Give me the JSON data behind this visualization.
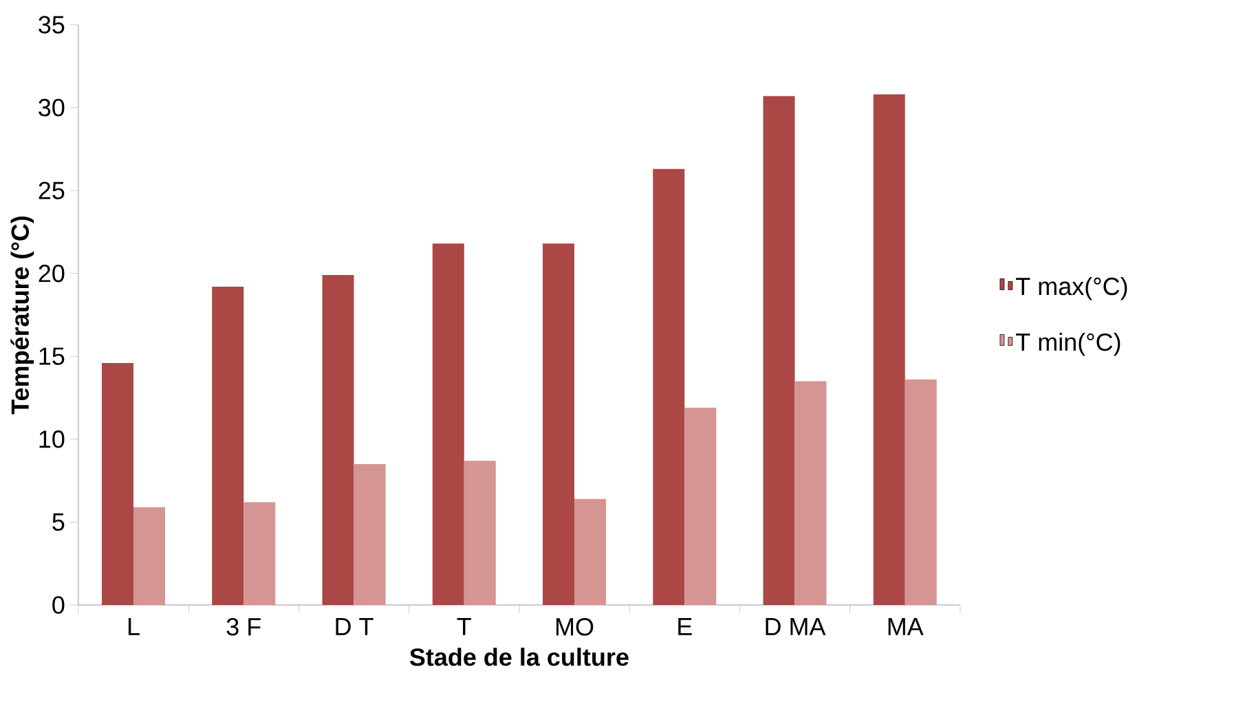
{
  "chart_data": {
    "type": "bar",
    "xlabel": "Stade de la culture",
    "ylabel": "Température (°C)",
    "categories": [
      "L",
      "3 F",
      "D T",
      "T",
      "MO",
      "E",
      "D MA",
      "MA"
    ],
    "series": [
      {
        "name": "T max(°C)",
        "color": "#ab4745",
        "values": [
          14.6,
          19.2,
          19.9,
          21.8,
          21.8,
          26.3,
          30.7,
          30.8
        ]
      },
      {
        "name": "T min(°C)",
        "color": "#d49593",
        "values": [
          5.9,
          6.2,
          8.5,
          8.7,
          6.4,
          11.9,
          13.5,
          13.6
        ]
      }
    ],
    "ylim": [
      0,
      35
    ],
    "yticks": [
      0,
      5,
      10,
      15,
      20,
      25,
      30,
      35
    ],
    "legend": "right"
  }
}
